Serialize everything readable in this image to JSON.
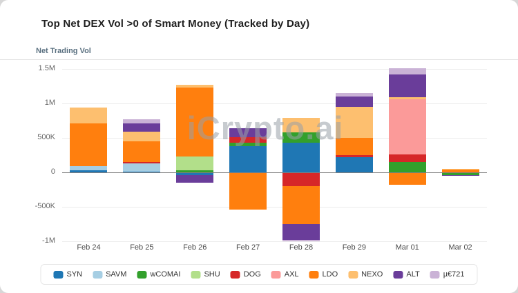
{
  "header": {
    "title": "Top Net DEX Vol >0 of Smart Money (Tracked by Day)",
    "axis_title": "Net Trading Vol"
  },
  "watermark": "iCrypto.ai",
  "chart_data": {
    "type": "bar",
    "stacked": true,
    "grid": true,
    "legend_position": "bottom",
    "title": "Top Net DEX Vol >0 of Smart Money (Tracked by Day)",
    "ylabel": "Net Trading Vol",
    "categories": [
      "Feb 24",
      "Feb 25",
      "Feb 26",
      "Feb 27",
      "Feb 28",
      "Feb 29",
      "Mar 01",
      "Mar 02"
    ],
    "ylim": [
      -1050000,
      1550000
    ],
    "y_ticks": [
      {
        "label": "1.5M",
        "value": 1500000
      },
      {
        "label": "1M",
        "value": 1000000
      },
      {
        "label": "500K",
        "value": 500000
      },
      {
        "label": "0",
        "value": 0
      },
      {
        "label": "-500K",
        "value": -500000
      },
      {
        "label": "-1M",
        "value": -1000000
      }
    ],
    "series": [
      {
        "name": "SYN",
        "color": "#1f77b4",
        "values": [
          30000,
          10000,
          -40000,
          380000,
          430000,
          220000,
          0,
          -10000
        ]
      },
      {
        "name": "SAVM",
        "color": "#a6cee3",
        "values": [
          60000,
          120000,
          0,
          0,
          0,
          0,
          0,
          0
        ]
      },
      {
        "name": "wCOMAI",
        "color": "#33a02c",
        "values": [
          0,
          0,
          30000,
          50000,
          150000,
          0,
          150000,
          -30000
        ]
      },
      {
        "name": "SHU",
        "color": "#b2df8a",
        "values": [
          0,
          0,
          200000,
          0,
          0,
          0,
          0,
          0
        ]
      },
      {
        "name": "DOG",
        "color": "#d62728",
        "values": [
          0,
          20000,
          0,
          80000,
          -200000,
          30000,
          110000,
          0
        ]
      },
      {
        "name": "AXL",
        "color": "#fb9a99",
        "values": [
          0,
          0,
          0,
          0,
          0,
          0,
          800000,
          0
        ]
      },
      {
        "name": "LDO",
        "color": "#ff7f0e",
        "values": [
          620000,
          300000,
          1000000,
          -540000,
          -550000,
          250000,
          -180000,
          40000
        ]
      },
      {
        "name": "NEXO",
        "color": "#fdbf6f",
        "values": [
          230000,
          140000,
          40000,
          0,
          210000,
          450000,
          30000,
          10000
        ]
      },
      {
        "name": "ALT",
        "color": "#6a3d9a",
        "values": [
          0,
          120000,
          -110000,
          130000,
          -230000,
          150000,
          330000,
          -10000
        ]
      },
      {
        "name": "µ€721",
        "color": "#cab2d6",
        "values": [
          0,
          60000,
          0,
          0,
          -20000,
          50000,
          90000,
          0
        ]
      }
    ]
  }
}
